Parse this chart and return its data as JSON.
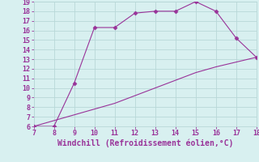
{
  "xlabel": "Windchill (Refroidissement éolien,°C)",
  "xlim": [
    7,
    18
  ],
  "ylim": [
    6,
    19
  ],
  "xticks": [
    7,
    8,
    9,
    10,
    11,
    12,
    13,
    14,
    15,
    16,
    17,
    18
  ],
  "yticks": [
    6,
    7,
    8,
    9,
    10,
    11,
    12,
    13,
    14,
    15,
    16,
    17,
    18,
    19
  ],
  "line1_x": [
    7,
    8,
    9,
    10,
    11,
    12,
    13,
    14,
    15,
    16,
    17,
    18
  ],
  "line1_y": [
    6.0,
    6.0,
    10.5,
    16.3,
    16.3,
    17.8,
    18.0,
    18.0,
    19.0,
    18.0,
    15.2,
    13.2
  ],
  "line2_x": [
    7,
    8,
    9,
    10,
    11,
    12,
    13,
    14,
    15,
    16,
    17,
    18
  ],
  "line2_y": [
    6.0,
    6.6,
    7.2,
    7.8,
    8.4,
    9.2,
    10.0,
    10.8,
    11.6,
    12.2,
    12.7,
    13.2
  ],
  "line_color": "#993399",
  "bg_color": "#d8f0f0",
  "grid_color": "#b8d8d8",
  "text_color": "#993399",
  "marker": "D",
  "marker_size": 2.5,
  "xlabel_fontsize": 7,
  "tick_fontsize": 6
}
